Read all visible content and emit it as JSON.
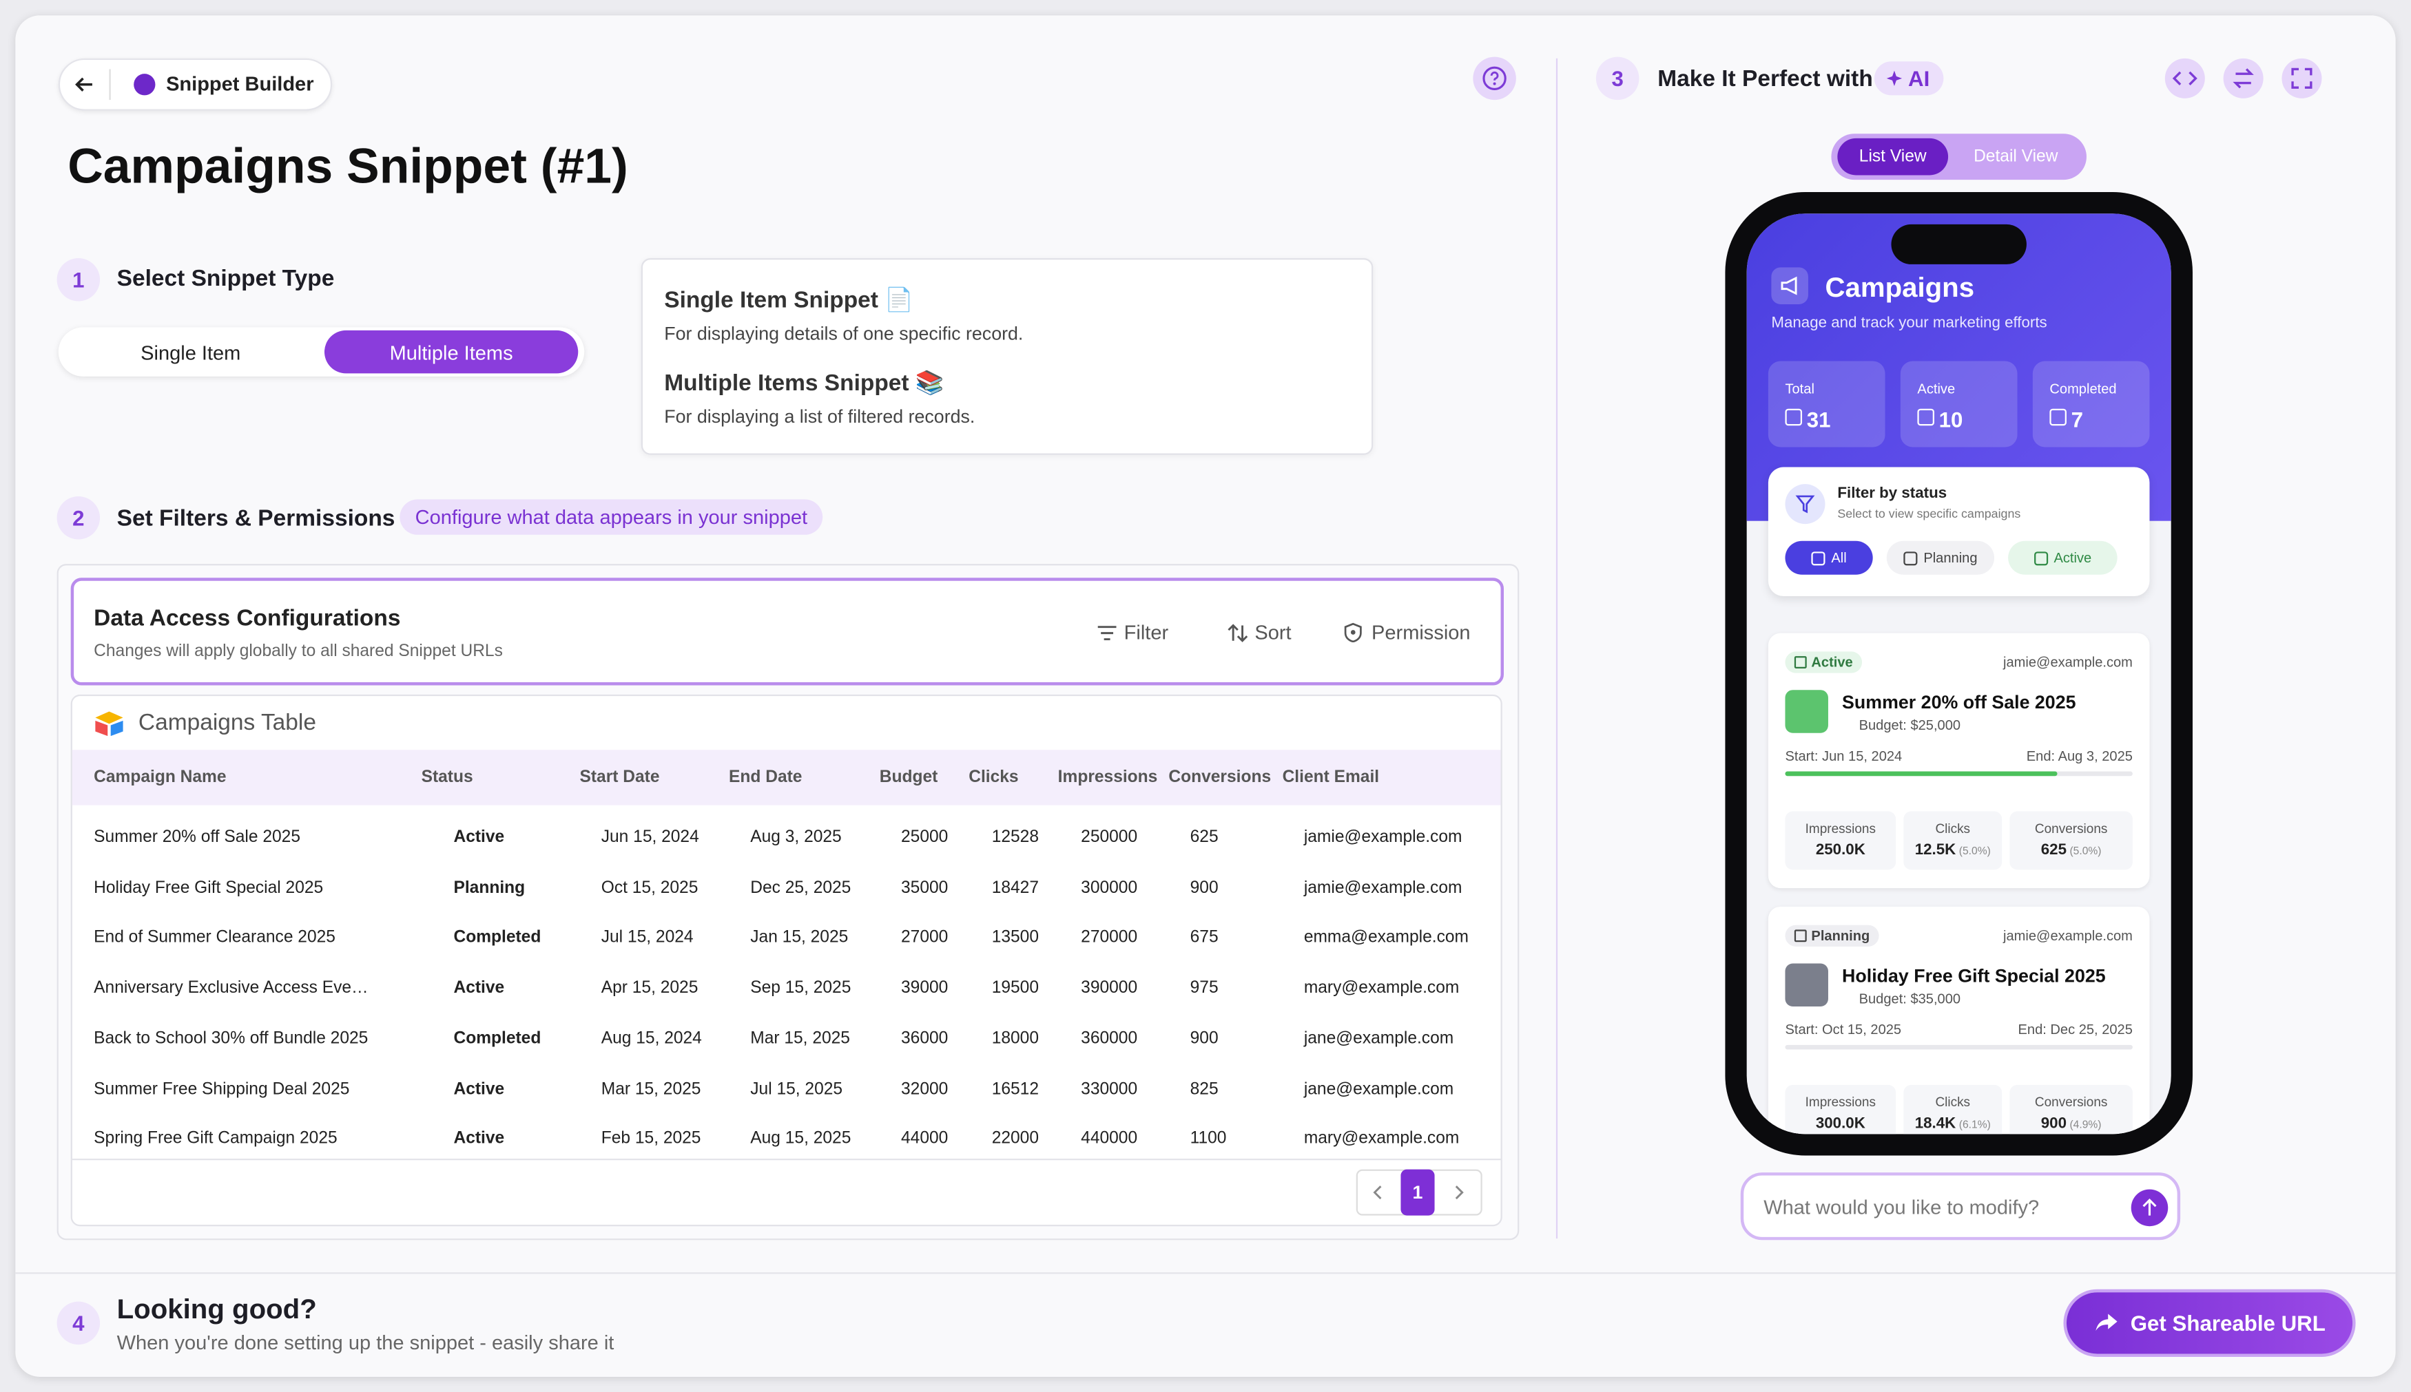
{
  "header": {
    "app_name": "Snippet Builder",
    "title": "Campaigns Snippet (#1)"
  },
  "steps": [
    {
      "number": "1",
      "label": "Select Snippet Type"
    },
    {
      "number": "2",
      "label": "Set Filters & Permissions",
      "badge": "Configure what data appears in your snippet"
    },
    {
      "number": "3",
      "label": "Make It Perfect with",
      "badge": "AI"
    },
    {
      "number": "4",
      "label": "Looking good?",
      "description": "When you're done setting up the snippet - easily share it"
    }
  ],
  "snippet_type": {
    "options": [
      "Single Item",
      "Multiple Items"
    ],
    "selected": 1
  },
  "info": [
    {
      "title": "Single Item Snippet 📄",
      "description": "For displaying details of one specific record."
    },
    {
      "title": "Multiple Items Snippet 📚",
      "description": "For displaying a list of filtered records."
    }
  ],
  "config": {
    "title": "Data Access Configurations",
    "subtitle": "Changes will apply globally to all shared Snippet URLs",
    "actions": [
      "Filter",
      "Sort",
      "Permission"
    ]
  },
  "table": {
    "name": "Campaigns Table",
    "columns": [
      "Campaign Name",
      "Status",
      "Start Date",
      "End Date",
      "Budget",
      "Clicks",
      "Impressions",
      "Conversions",
      "Client Email"
    ],
    "rows": [
      [
        "Summer 20% off Sale 2025",
        "Active",
        "Jun 15, 2024",
        "Aug 3, 2025",
        25000,
        12528,
        250000,
        625,
        "jamie@example.com"
      ],
      [
        "Holiday Free Gift Special 2025",
        "Planning",
        "Oct 15, 2025",
        "Dec 25, 2025",
        35000,
        18427,
        300000,
        900,
        "jamie@example.com"
      ],
      [
        "End of Summer Clearance 2025",
        "Completed",
        "Jul 15, 2024",
        "Jan 15, 2025",
        27000,
        13500,
        270000,
        675,
        "emma@example.com"
      ],
      [
        "Anniversary Exclusive Access Eve…",
        "Active",
        "Apr 15, 2025",
        "Sep 15, 2025",
        39000,
        19500,
        390000,
        975,
        "mary@example.com"
      ],
      [
        "Back to School 30% off Bundle 2025",
        "Completed",
        "Aug 15, 2024",
        "Mar 15, 2025",
        36000,
        18000,
        360000,
        900,
        "jane@example.com"
      ],
      [
        "Summer Free Shipping Deal 2025",
        "Active",
        "Mar 15, 2025",
        "Jul 15, 2025",
        32000,
        16512,
        330000,
        825,
        "jane@example.com"
      ],
      [
        "Spring Free Gift Campaign 2025",
        "Active",
        "Feb 15, 2025",
        "Aug 15, 2025",
        44000,
        22000,
        440000,
        1100,
        "mary@example.com"
      ]
    ],
    "page": 1
  },
  "preview": {
    "views": [
      "List View",
      "Detail View"
    ],
    "selected": 0,
    "title": "Campaigns",
    "subtitle": "Manage and track your marketing efforts",
    "stats": [
      {
        "label": "Total",
        "value": 31
      },
      {
        "label": "Active",
        "value": 10
      },
      {
        "label": "Completed",
        "value": 7
      }
    ],
    "filter": {
      "title": "Filter by status",
      "subtitle": "Select to view specific campaigns",
      "chips": [
        "All",
        "Planning",
        "Active"
      ]
    },
    "cards": [
      {
        "status": "Active",
        "email": "jamie@example.com",
        "title": "Summer 20% off Sale 2025",
        "budget": "Budget: $25,000",
        "start": "Start: Jun 15, 2024",
        "end": "End: Aug 3, 2025",
        "metrics": [
          {
            "label": "Impressions",
            "value": "250.0K"
          },
          {
            "label": "Clicks",
            "value": "12.5K",
            "note": "(5.0%)"
          },
          {
            "label": "Conversions",
            "value": "625",
            "note": "(5.0%)"
          }
        ]
      },
      {
        "status": "Planning",
        "email": "jamie@example.com",
        "title": "Holiday Free Gift Special 2025",
        "budget": "Budget: $35,000",
        "start": "Start: Oct 15, 2025",
        "end": "End: Dec 25, 2025",
        "metrics": [
          {
            "label": "Impressions",
            "value": "300.0K"
          },
          {
            "label": "Clicks",
            "value": "18.4K",
            "note": "(6.1%)"
          },
          {
            "label": "Conversions",
            "value": "900",
            "note": "(4.9%)"
          }
        ]
      }
    ],
    "prompt_placeholder": "What would you like to modify?"
  },
  "footer": {
    "button": "Get Shareable URL"
  }
}
